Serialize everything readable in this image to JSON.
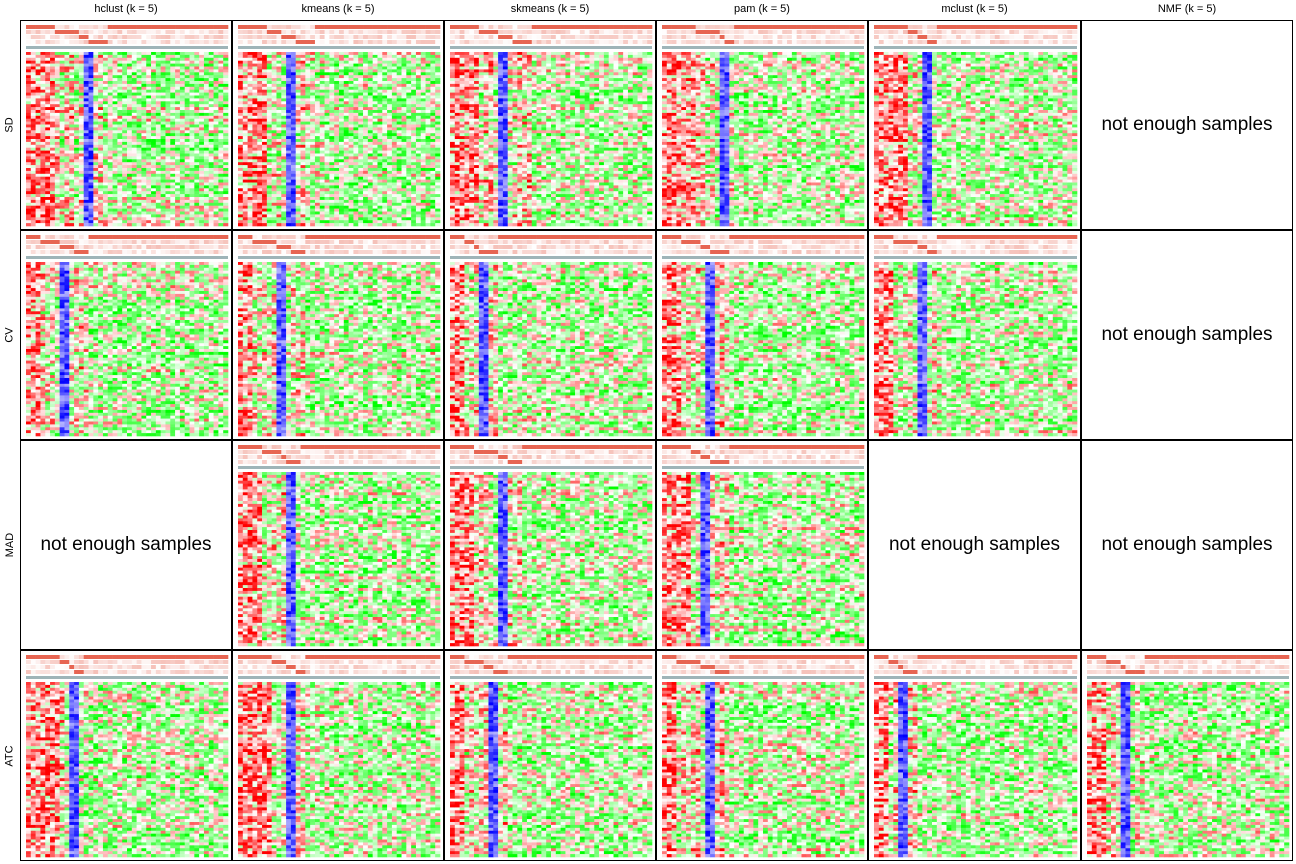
{
  "columns": [
    "hclust (k = 5)",
    "kmeans (k = 5)",
    "skmeans (k = 5)",
    "pam (k = 5)",
    "mclust (k = 5)",
    "NMF (k = 5)"
  ],
  "rows": [
    "SD",
    "CV",
    "MAD",
    "ATC"
  ],
  "empty_message": "not enough samples",
  "colors": {
    "low": "#00ff00",
    "mid": "#ffffff",
    "high": "#ff0000",
    "class_low": "#0000ff",
    "annotation_high": "#e34a33",
    "border": "#000000"
  },
  "chart_data": {
    "type": "heatmap",
    "title": "",
    "cells": [
      {
        "row": "SD",
        "column": "hclust (k = 5)",
        "available": true
      },
      {
        "row": "SD",
        "column": "kmeans (k = 5)",
        "available": true
      },
      {
        "row": "SD",
        "column": "skmeans (k = 5)",
        "available": true
      },
      {
        "row": "SD",
        "column": "pam (k = 5)",
        "available": true
      },
      {
        "row": "SD",
        "column": "mclust (k = 5)",
        "available": true
      },
      {
        "row": "SD",
        "column": "NMF (k = 5)",
        "available": false
      },
      {
        "row": "CV",
        "column": "hclust (k = 5)",
        "available": true
      },
      {
        "row": "CV",
        "column": "kmeans (k = 5)",
        "available": true
      },
      {
        "row": "CV",
        "column": "skmeans (k = 5)",
        "available": true
      },
      {
        "row": "CV",
        "column": "pam (k = 5)",
        "available": true
      },
      {
        "row": "CV",
        "column": "mclust (k = 5)",
        "available": true
      },
      {
        "row": "CV",
        "column": "NMF (k = 5)",
        "available": false
      },
      {
        "row": "MAD",
        "column": "hclust (k = 5)",
        "available": false
      },
      {
        "row": "MAD",
        "column": "kmeans (k = 5)",
        "available": true
      },
      {
        "row": "MAD",
        "column": "skmeans (k = 5)",
        "available": true
      },
      {
        "row": "MAD",
        "column": "pam (k = 5)",
        "available": true
      },
      {
        "row": "MAD",
        "column": "mclust (k = 5)",
        "available": false
      },
      {
        "row": "MAD",
        "column": "NMF (k = 5)",
        "available": false
      },
      {
        "row": "ATC",
        "column": "hclust (k = 5)",
        "available": true
      },
      {
        "row": "ATC",
        "column": "kmeans (k = 5)",
        "available": true
      },
      {
        "row": "ATC",
        "column": "skmeans (k = 5)",
        "available": true
      },
      {
        "row": "ATC",
        "column": "pam (k = 5)",
        "available": true
      },
      {
        "row": "ATC",
        "column": "mclust (k = 5)",
        "available": true
      },
      {
        "row": "ATC",
        "column": "NMF (k = 5)",
        "available": true
      }
    ]
  }
}
